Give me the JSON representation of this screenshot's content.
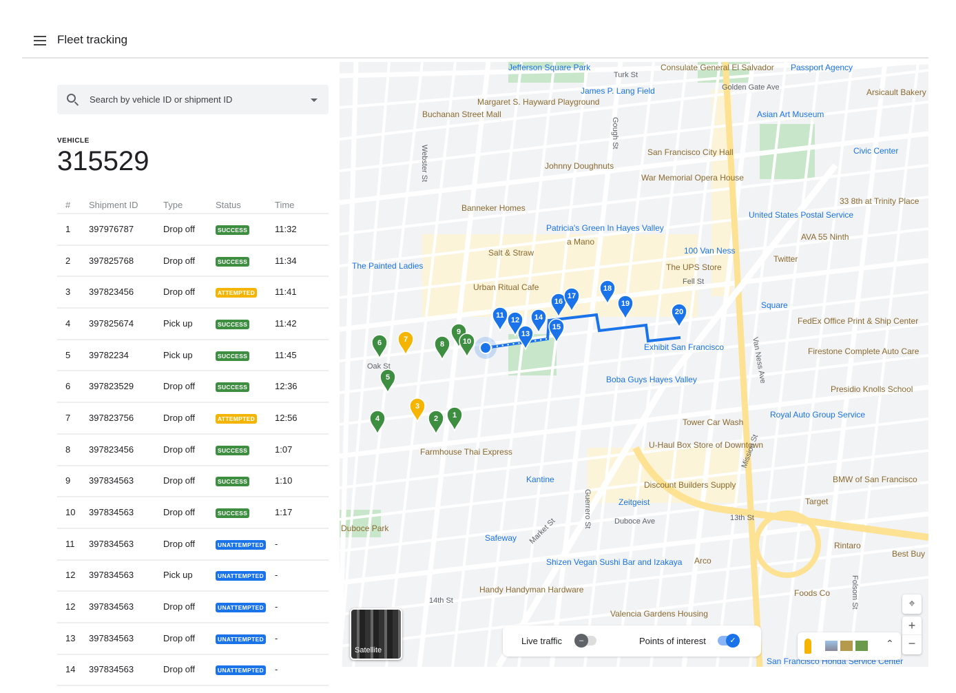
{
  "header": {
    "title": "Fleet tracking",
    "menu_icon": "hamburger-menu-icon"
  },
  "search": {
    "placeholder": "Search by vehicle ID or shipment ID",
    "icon": "search-icon"
  },
  "vehicle": {
    "label": "VEHICLE",
    "id": "315529"
  },
  "table": {
    "headers": [
      "#",
      "Shipment ID",
      "Type",
      "Status",
      "Time"
    ],
    "rows": [
      {
        "num": "1",
        "id": "397976787",
        "type": "Drop off",
        "status": "SUCCESS",
        "time": "11:32"
      },
      {
        "num": "2",
        "id": "397825768",
        "type": "Drop off",
        "status": "SUCCESS",
        "time": "11:34"
      },
      {
        "num": "3",
        "id": "397823456",
        "type": "Drop off",
        "status": "ATTEMPTED",
        "time": "11:41"
      },
      {
        "num": "4",
        "id": "397825674",
        "type": "Pick up",
        "status": "SUCCESS",
        "time": "11:42"
      },
      {
        "num": "5",
        "id": "39782234",
        "type": "Pick up",
        "status": "SUCCESS",
        "time": "11:45"
      },
      {
        "num": "6",
        "id": "397823529",
        "type": "Drop off",
        "status": "SUCCESS",
        "time": "12:36"
      },
      {
        "num": "7",
        "id": "397823756",
        "type": "Drop off",
        "status": "ATTEMPTED",
        "time": "12:56"
      },
      {
        "num": "8",
        "id": "397823456",
        "type": "Drop off",
        "status": "SUCCESS",
        "time": "1:07"
      },
      {
        "num": "9",
        "id": "397834563",
        "type": "Drop off",
        "status": "SUCCESS",
        "time": "1:10"
      },
      {
        "num": "10",
        "id": "397834563",
        "type": "Drop off",
        "status": "SUCCESS",
        "time": "1:17"
      },
      {
        "num": "11",
        "id": "397834563",
        "type": "Drop off",
        "status": "UNATTEMPTED",
        "time": "-"
      },
      {
        "num": "12",
        "id": "397834563",
        "type": "Pick up",
        "status": "UNATTEMPTED",
        "time": "-"
      },
      {
        "num": "12",
        "id": "397834563",
        "type": "Drop off",
        "status": "UNATTEMPTED",
        "time": "-"
      },
      {
        "num": "13",
        "id": "397834563",
        "type": "Drop off",
        "status": "UNATTEMPTED",
        "time": "-"
      },
      {
        "num": "14",
        "id": "397834563",
        "type": "Drop off",
        "status": "UNATTEMPTED",
        "time": "-"
      }
    ]
  },
  "status_colors": {
    "SUCCESS": "#3e8e41",
    "ATTEMPTED": "#f4b400",
    "UNATTEMPTED": "#1a73e8"
  },
  "map": {
    "stops": [
      {
        "label": "1",
        "state": "done"
      },
      {
        "label": "2",
        "state": "done"
      },
      {
        "label": "3",
        "state": "attempted"
      },
      {
        "label": "4",
        "state": "done"
      },
      {
        "label": "5",
        "state": "done"
      },
      {
        "label": "6",
        "state": "done"
      },
      {
        "label": "7",
        "state": "attempted"
      },
      {
        "label": "8",
        "state": "done"
      },
      {
        "label": "9",
        "state": "done"
      },
      {
        "label": "10",
        "state": "done"
      },
      {
        "label": "11",
        "state": "pending"
      },
      {
        "label": "12",
        "state": "pending"
      },
      {
        "label": "13",
        "state": "pending"
      },
      {
        "label": "14",
        "state": "pending"
      },
      {
        "label": "15",
        "state": "pending"
      },
      {
        "label": "16",
        "state": "pending"
      },
      {
        "label": "17",
        "state": "pending"
      },
      {
        "label": "18",
        "state": "pending"
      },
      {
        "label": "19",
        "state": "pending"
      },
      {
        "label": "20",
        "state": "pending"
      }
    ],
    "stop_colors": {
      "done": "#3e8e41",
      "attempted": "#f4b400",
      "pending": "#1a73e8"
    },
    "places": [
      "Jefferson Square Park",
      "Turk St",
      "Consulate General El Salvador",
      "Passport Agency",
      "Arsicault Bakery",
      "Margaret S. Hayward Playground",
      "James P. Lang Field",
      "Golden Gate Ave",
      "Buchanan Street Mall",
      "Asian Art Museum",
      "Johnny Doughnuts",
      "San Francisco City Hall",
      "Civic Center",
      "War Memorial Opera House",
      "Banneker Homes",
      "United States Postal Service",
      "33 8th at Trinity Place",
      "AVA 55 Ninth",
      "The Painted Ladies",
      "Salt & Straw",
      "a Mano",
      "100 Van Ness",
      "Twitter",
      "The UPS Store",
      "Patricia's Green In Hayes Valley",
      "Urban Ritual Cafe",
      "Fell St",
      "Square",
      "FedEx Office Print & Ship Center",
      "Oak St",
      "Exhibit San Francisco",
      "Van Ness Ave",
      "Firestone Complete Auto Care",
      "Boba Guys Hayes Valley",
      "Presidio Knolls School",
      "Tower Car Wash",
      "Royal Auto Group Service",
      "Farmhouse Thai Express",
      "U-Haul Box Store of Downtown",
      "Kantine",
      "Discount Builders Supply",
      "BMW of San Francisco",
      "Zeitgeist",
      "Target",
      "Market St",
      "13th St",
      "Duboce Ave",
      "Duboce Park",
      "Safeway",
      "Rintaro",
      "Best Buy",
      "Shizen Vegan Sushi Bar and Izakaya",
      "Arco",
      "Handy Handyman Hardware",
      "14th St",
      "Foods Co",
      "Valencia Gardens Housing",
      "San Francisco Honda Service Center",
      "Guerrero St",
      "Mission St",
      "Folsom St",
      "Webster St",
      "Gough St"
    ],
    "satellite_label": "Satellite",
    "live_traffic": {
      "label": "Live traffic",
      "on": false
    },
    "points_of_interest": {
      "label": "Points of interest",
      "on": true
    }
  }
}
